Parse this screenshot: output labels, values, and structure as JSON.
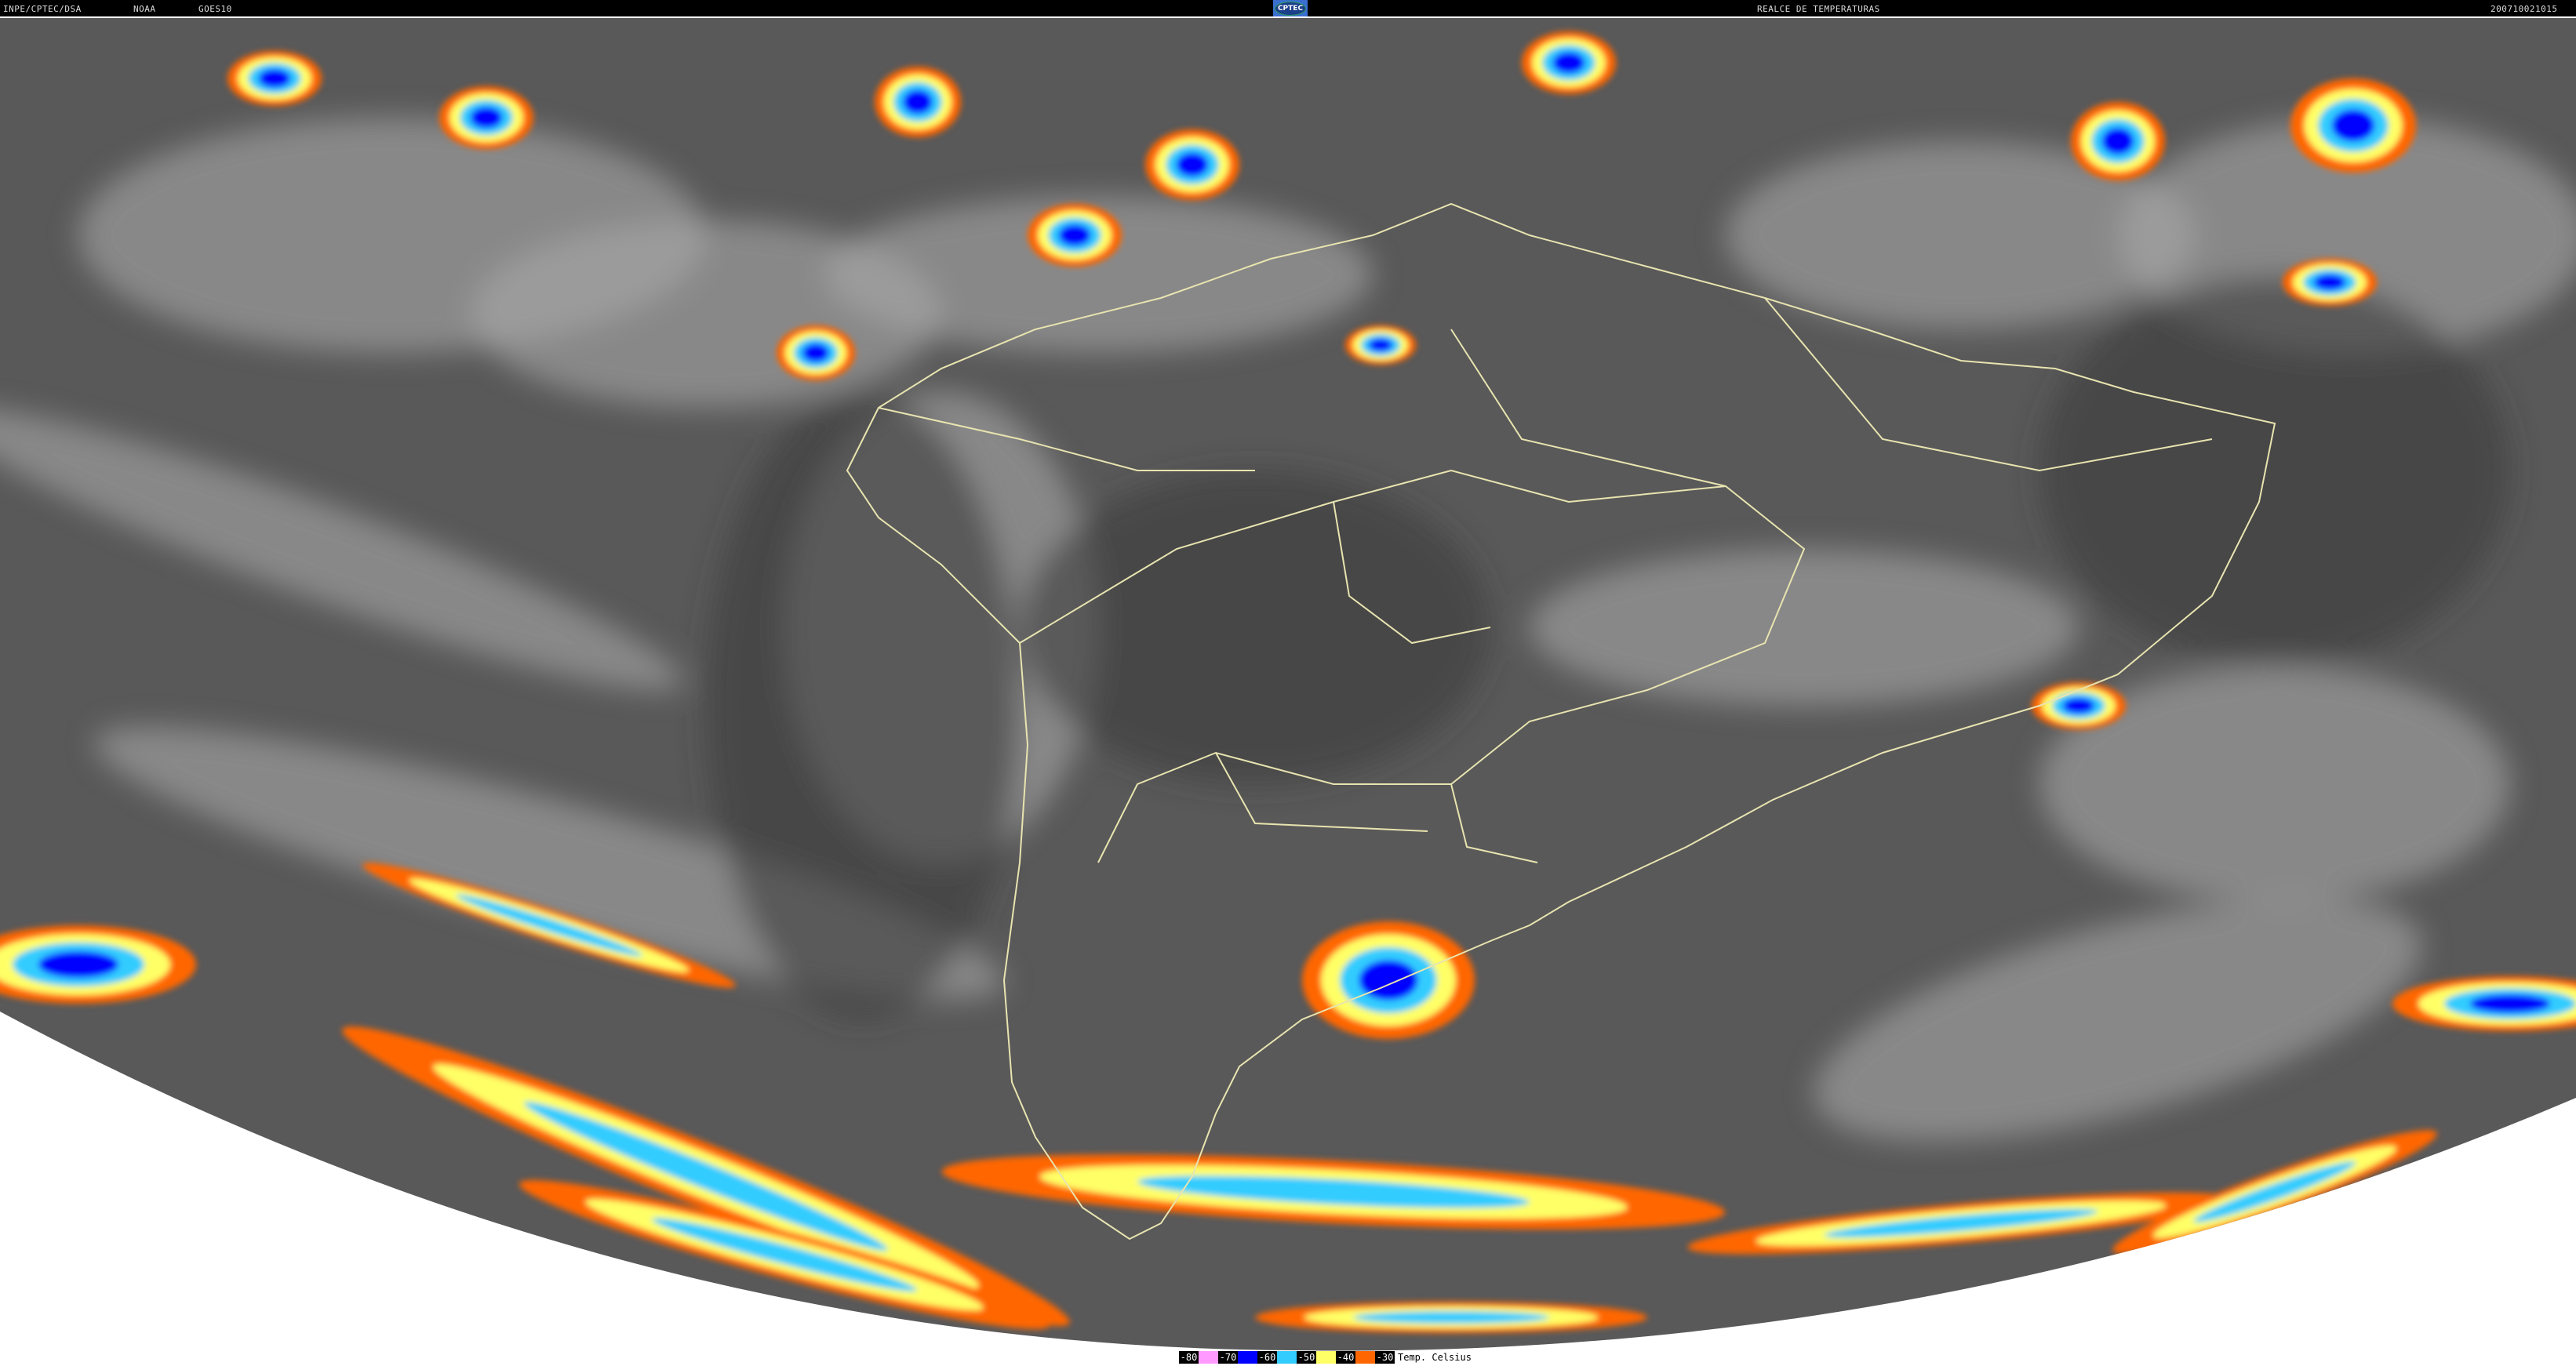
{
  "header": {
    "source": "INPE/CPTEC/DSA",
    "agency": "NOAA",
    "satellite": "GOES10",
    "logo_text": "CPTEC",
    "product": "REALCE DE TEMPERATURAS",
    "timestamp": "200710021015"
  },
  "legend": {
    "unit_label": "Temp. Celsius",
    "items": [
      {
        "label": "-80",
        "color": "#ff99ff"
      },
      {
        "label": "-70",
        "color": "#0000ff"
      },
      {
        "label": "-60",
        "color": "#33ccff"
      },
      {
        "label": "-50",
        "color": "#ffff66"
      },
      {
        "label": "-40",
        "color": "#ff6600"
      },
      {
        "label": "-30",
        "color": null
      }
    ]
  },
  "colors": {
    "background_earth": "#5a5a5a",
    "border_lines": "#e8e4b0",
    "space": "#ffffff"
  }
}
